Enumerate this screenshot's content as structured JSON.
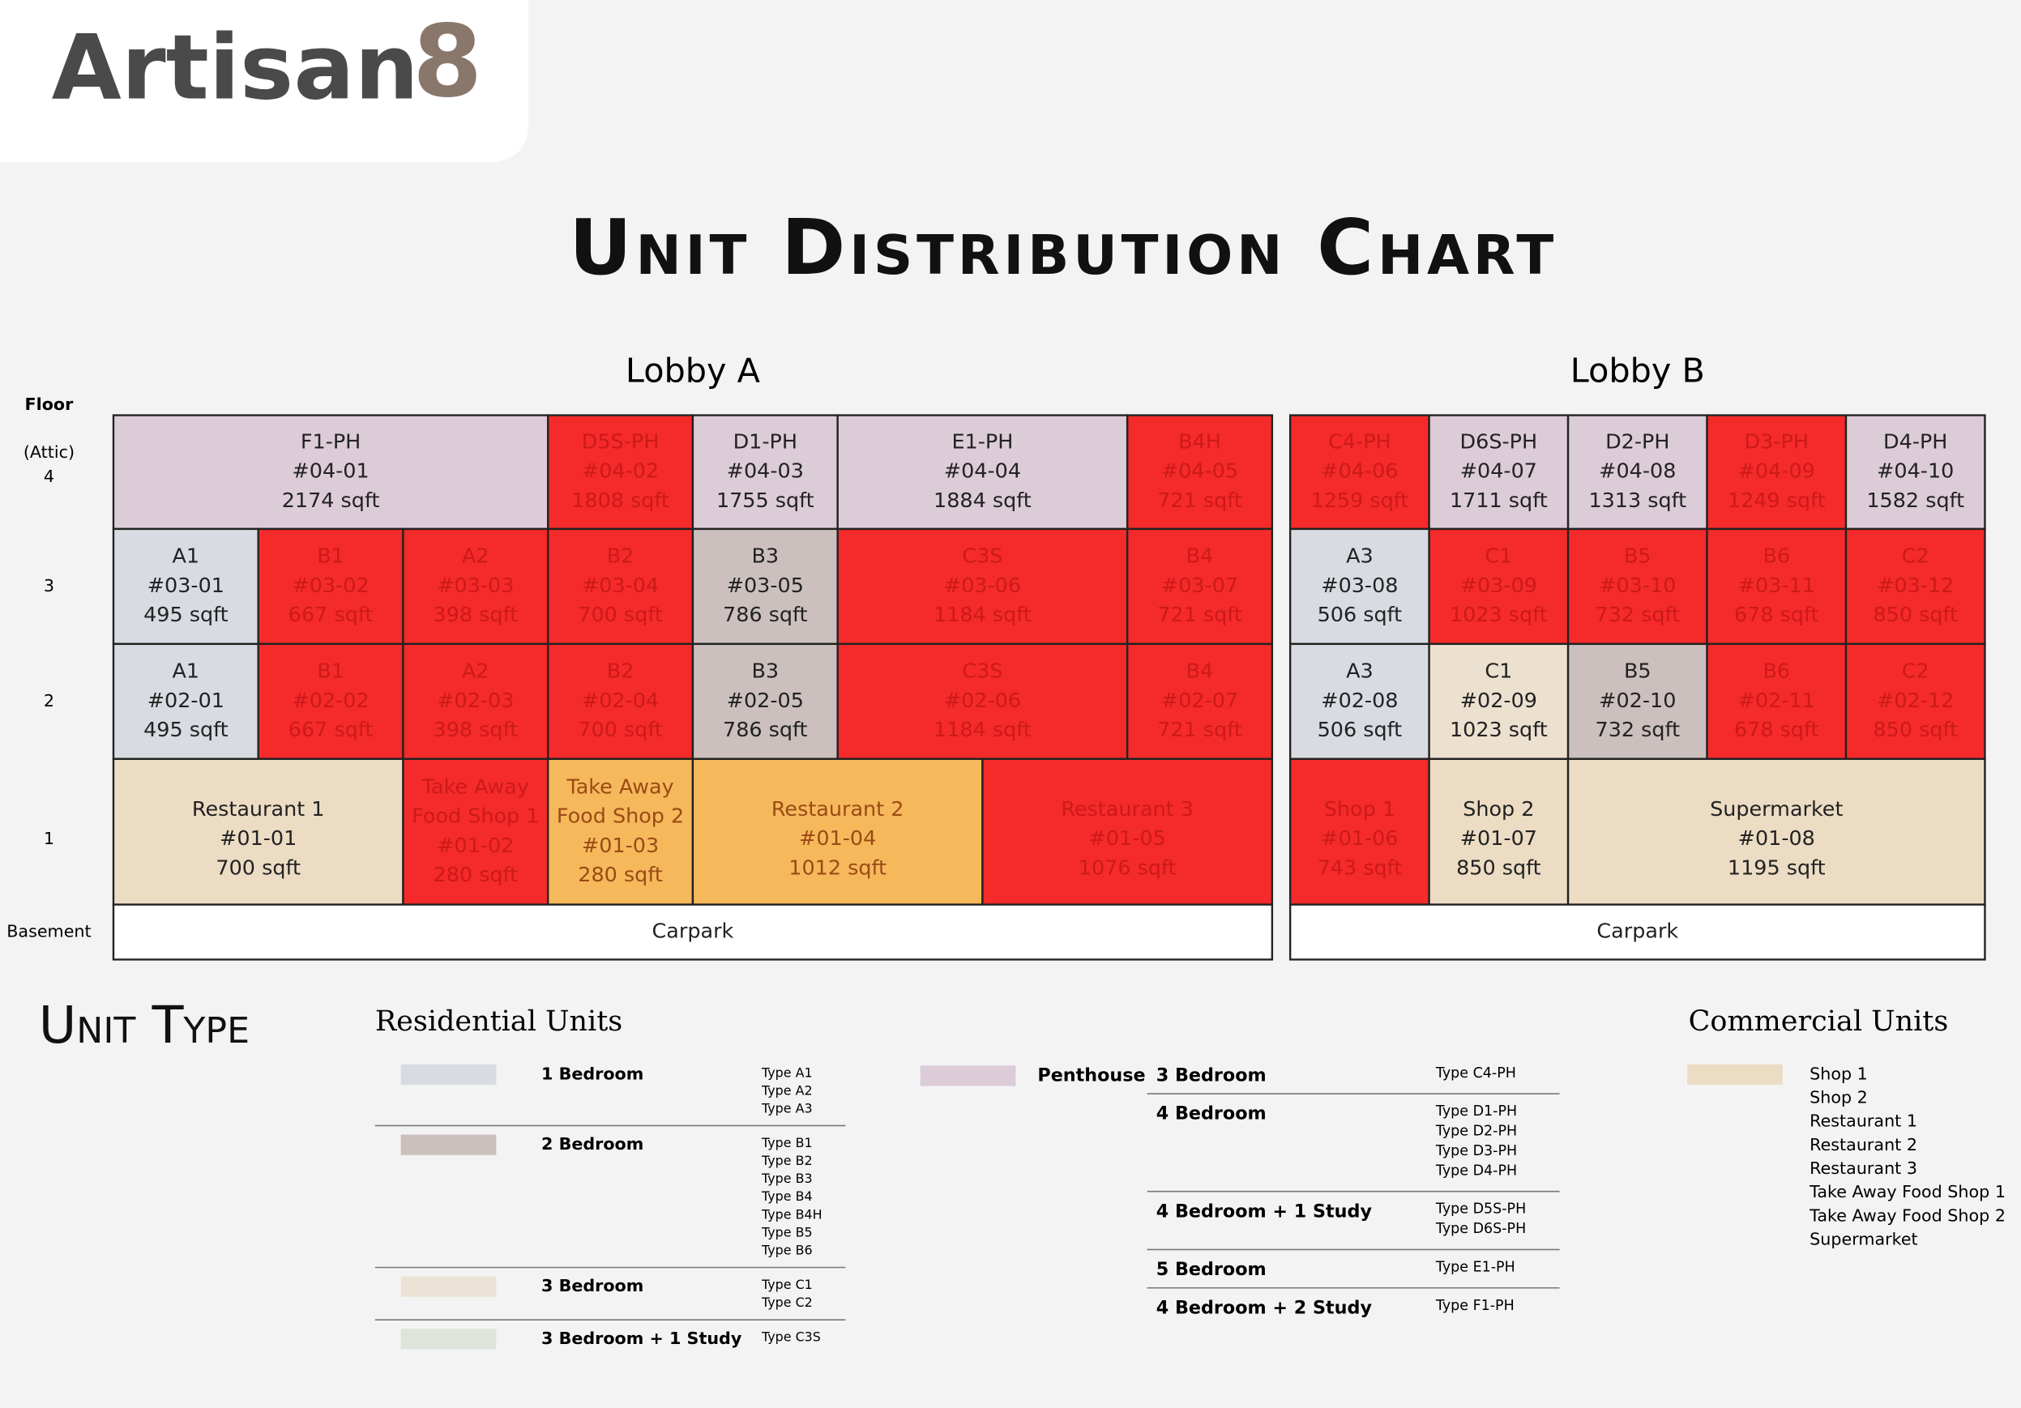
{
  "header": {
    "brand": "Artisan",
    "brand_mark": "8",
    "title": "Unit Distribution Chart"
  },
  "floor_header": "Floor",
  "floors": [
    {
      "note": "(Attic)",
      "label": "4"
    },
    {
      "label": "3"
    },
    {
      "label": "2"
    },
    {
      "label": "1"
    },
    {
      "label": "Basement"
    }
  ],
  "lobbies": [
    {
      "name": "Lobby A",
      "rows": [
        [
          {
            "lines": [
              "F1-PH",
              "#04-01",
              "2174 sqft"
            ],
            "color": "#dcccd8",
            "span": 3
          },
          {
            "lines": [
              "D5S-PH",
              "#04-02",
              "1808 sqft"
            ],
            "color": "#f52a2a"
          },
          {
            "lines": [
              "D1-PH",
              "#04-03",
              "1755 sqft"
            ],
            "color": "#dcccd8"
          },
          {
            "lines": [
              "E1-PH",
              "#04-04",
              "1884 sqft"
            ],
            "color": "#dcccd8",
            "span": 2
          },
          {
            "lines": [
              "B4H",
              "#04-05",
              "721 sqft"
            ],
            "color": "#f52a2a"
          }
        ],
        [
          {
            "lines": [
              "A1",
              "#03-01",
              "495 sqft"
            ],
            "color": "#d8dbe2"
          },
          {
            "lines": [
              "B1",
              "#03-02",
              "667 sqft"
            ],
            "color": "#f52a2a"
          },
          {
            "lines": [
              "A2",
              "#03-03",
              "398 sqft"
            ],
            "color": "#f52a2a"
          },
          {
            "lines": [
              "B2",
              "#03-04",
              "700 sqft"
            ],
            "color": "#f52a2a"
          },
          {
            "lines": [
              "B3",
              "#03-05",
              "786 sqft"
            ],
            "color": "#cbc0bd"
          },
          {
            "lines": [
              "C3S",
              "#03-06",
              "1184 sqft"
            ],
            "color": "#f52a2a",
            "span": 2
          },
          {
            "lines": [
              "B4",
              "#03-07",
              "721 sqft"
            ],
            "color": "#f52a2a"
          }
        ],
        [
          {
            "lines": [
              "A1",
              "#02-01",
              "495 sqft"
            ],
            "color": "#d8dbe2"
          },
          {
            "lines": [
              "B1",
              "#02-02",
              "667 sqft"
            ],
            "color": "#f52a2a"
          },
          {
            "lines": [
              "A2",
              "#02-03",
              "398 sqft"
            ],
            "color": "#f52a2a"
          },
          {
            "lines": [
              "B2",
              "#02-04",
              "700 sqft"
            ],
            "color": "#f52a2a"
          },
          {
            "lines": [
              "B3",
              "#02-05",
              "786 sqft"
            ],
            "color": "#cbc0bd"
          },
          {
            "lines": [
              "C3S",
              "#02-06",
              "1184 sqft"
            ],
            "color": "#f52a2a",
            "span": 2
          },
          {
            "lines": [
              "B4",
              "#02-07",
              "721 sqft"
            ],
            "color": "#f52a2a"
          }
        ],
        [
          {
            "lines": [
              "Restaurant 1",
              "#01-01",
              "700 sqft"
            ],
            "color": "#ecdcc4",
            "span": 2
          },
          {
            "lines": [
              "Take Away",
              "Food Shop 1",
              "#01-02",
              "280 sqft"
            ],
            "color": "#f52a2a"
          },
          {
            "lines": [
              "Take Away",
              "Food Shop 2",
              "#01-03",
              "280 sqft"
            ],
            "color": "#f5b95c"
          },
          {
            "lines": [
              "Restaurant 2",
              "#01-04",
              "1012 sqft"
            ],
            "color": "#f5b95c",
            "span": 2
          },
          {
            "lines": [
              "Restaurant 3",
              "#01-05",
              "1076 sqft"
            ],
            "color": "#f52a2a",
            "span": 2
          }
        ],
        [
          {
            "lines": [
              "Carpark"
            ],
            "color": "#ffffff",
            "span": 8
          }
        ]
      ]
    },
    {
      "name": "Lobby B",
      "rows": [
        [
          {
            "lines": [
              "C4-PH",
              "#04-06",
              "1259 sqft"
            ],
            "color": "#f52a2a"
          },
          {
            "lines": [
              "D6S-PH",
              "#04-07",
              "1711 sqft"
            ],
            "color": "#dcccd8"
          },
          {
            "lines": [
              "D2-PH",
              "#04-08",
              "1313 sqft"
            ],
            "color": "#dcccd8"
          },
          {
            "lines": [
              "D3-PH",
              "#04-09",
              "1249 sqft"
            ],
            "color": "#f52a2a"
          },
          {
            "lines": [
              "D4-PH",
              "#04-10",
              "1582 sqft"
            ],
            "color": "#dcccd8"
          }
        ],
        [
          {
            "lines": [
              "A3",
              "#03-08",
              "506 sqft"
            ],
            "color": "#d8dbe2"
          },
          {
            "lines": [
              "C1",
              "#03-09",
              "1023 sqft"
            ],
            "color": "#f52a2a"
          },
          {
            "lines": [
              "B5",
              "#03-10",
              "732 sqft"
            ],
            "color": "#f52a2a"
          },
          {
            "lines": [
              "B6",
              "#03-11",
              "678 sqft"
            ],
            "color": "#f52a2a"
          },
          {
            "lines": [
              "C2",
              "#03-12",
              "850 sqft"
            ],
            "color": "#f52a2a"
          }
        ],
        [
          {
            "lines": [
              "A3",
              "#02-08",
              "506 sqft"
            ],
            "color": "#d8dbe2"
          },
          {
            "lines": [
              "C1",
              "#02-09",
              "1023 sqft"
            ],
            "color": "#ece0cf"
          },
          {
            "lines": [
              "B5",
              "#02-10",
              "732 sqft"
            ],
            "color": "#cbc0bd"
          },
          {
            "lines": [
              "B6",
              "#02-11",
              "678 sqft"
            ],
            "color": "#f52a2a"
          },
          {
            "lines": [
              "C2",
              "#02-12",
              "850 sqft"
            ],
            "color": "#f52a2a"
          }
        ],
        [
          {
            "lines": [
              "Shop 1",
              "#01-06",
              "743 sqft"
            ],
            "color": "#f52a2a"
          },
          {
            "lines": [
              "Shop 2",
              "#01-07",
              "850 sqft"
            ],
            "color": "#ecdcc4"
          },
          {
            "lines": [
              "Supermarket",
              "#01-08",
              "1195 sqft"
            ],
            "color": "#ecdcc4",
            "span": 3
          }
        ],
        [
          {
            "lines": [
              "Carpark"
            ],
            "color": "#ffffff",
            "span": 5
          }
        ]
      ]
    }
  ],
  "legend": {
    "heading": "Unit Type",
    "residential": {
      "title": "Residential Units",
      "items": [
        {
          "label": "1 Bedroom",
          "color": "#d8dbe2",
          "types": [
            "Type A1",
            "Type A2",
            "Type A3"
          ]
        },
        {
          "label": "2 Bedroom",
          "color": "#cbc0bd",
          "types": [
            "Type B1",
            "Type B2",
            "Type B3",
            "Type B4",
            "Type B4H",
            "Type B5",
            "Type B6"
          ]
        },
        {
          "label": "3 Bedroom",
          "color": "#ece3d6",
          "types": [
            "Type C1",
            "Type C2"
          ]
        },
        {
          "label": "3 Bedroom + 1 Study",
          "color": "#dfe4da",
          "types": [
            "Type C3S"
          ]
        }
      ]
    },
    "penthouse": {
      "label": "Penthouse",
      "color": "#dcccd8",
      "items": [
        {
          "label": "3 Bedroom",
          "types": [
            "Type C4-PH"
          ]
        },
        {
          "label": "4 Bedroom",
          "types": [
            "Type D1-PH",
            "Type D2-PH",
            "Type D3-PH",
            "Type D4-PH"
          ]
        },
        {
          "label": "4 Bedroom + 1 Study",
          "types": [
            "Type D5S-PH",
            "Type D6S-PH"
          ]
        },
        {
          "label": "5 Bedroom",
          "types": [
            "Type E1-PH"
          ]
        },
        {
          "label": "4 Bedroom + 2 Study",
          "types": [
            "Type F1-PH"
          ]
        }
      ]
    },
    "commercial": {
      "title": "Commercial Units",
      "color": "#ecdcc4",
      "items": [
        "Shop 1",
        "Shop 2",
        "Restaurant 1",
        "Restaurant 2",
        "Restaurant 3",
        "Take Away Food Shop 1",
        "Take Away Food Shop 2",
        "Supermarket"
      ]
    }
  }
}
